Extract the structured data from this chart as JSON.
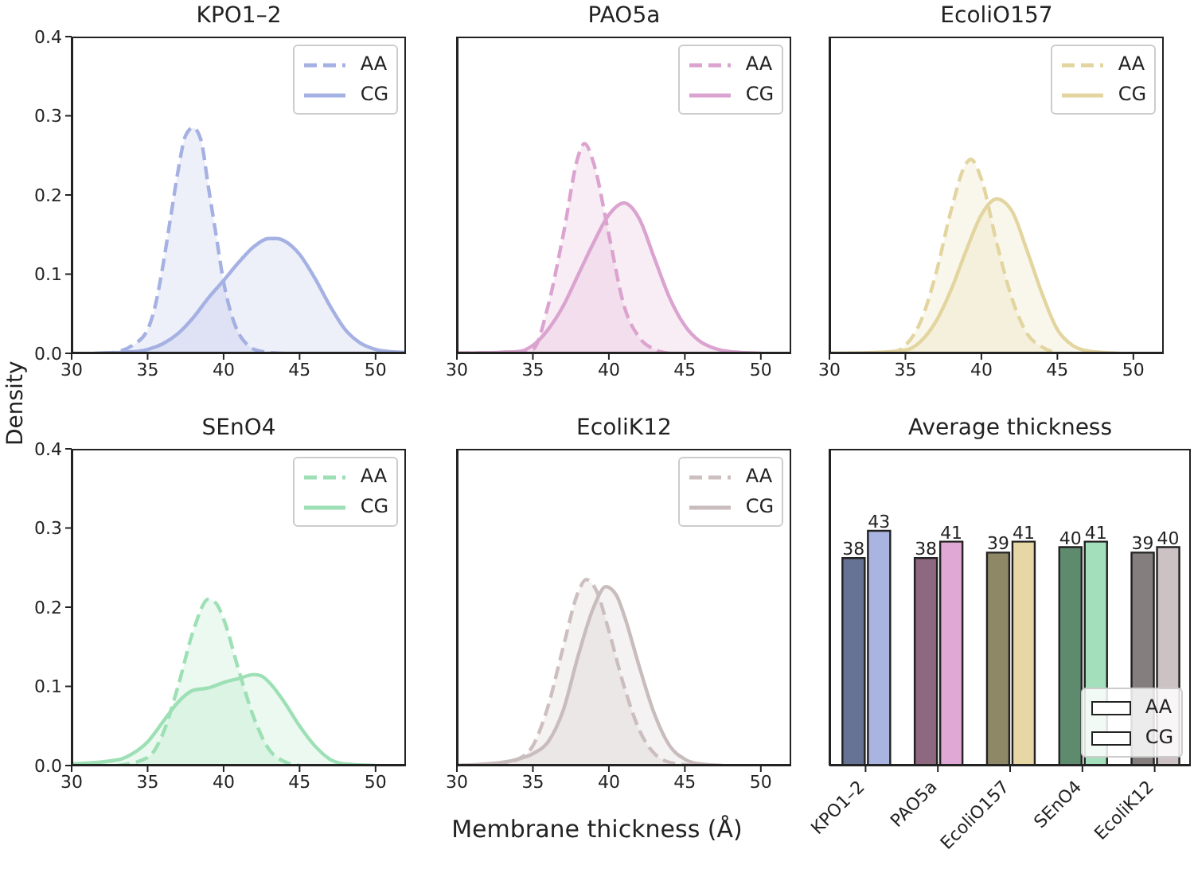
{
  "chart_data": [
    {
      "type": "area",
      "title": "KPO1–2",
      "ylabel": "Density",
      "xlim": [
        30,
        52
      ],
      "xticks": [
        30,
        35,
        40,
        45,
        50
      ],
      "ylim": [
        0,
        0.4
      ],
      "yticks": [
        {
          "value": 0,
          "label": "0.0"
        },
        0.1,
        0.2,
        0.3,
        0.4
      ],
      "legend": "top right",
      "series": [
        {
          "name": "AA",
          "color": "#a5b1e3",
          "line_style": "dashed",
          "x": [
            32,
            33,
            34,
            35,
            35.5,
            36,
            36.5,
            37,
            37.5,
            38,
            38.5,
            39,
            39.5,
            40,
            40.5,
            41,
            41.5,
            42,
            43,
            44
          ],
          "values": [
            0,
            0.002,
            0.01,
            0.03,
            0.06,
            0.11,
            0.17,
            0.23,
            0.275,
            0.285,
            0.27,
            0.21,
            0.15,
            0.09,
            0.05,
            0.025,
            0.012,
            0.005,
            0.001,
            0
          ]
        },
        {
          "name": "CG",
          "color": "#a5b1e3",
          "line_style": "solid",
          "x": [
            31.5,
            34,
            35,
            36,
            37,
            38,
            39,
            40,
            41,
            42,
            43,
            43.5,
            44,
            45,
            46,
            47,
            48,
            49,
            50,
            51,
            52
          ],
          "values": [
            0,
            0.002,
            0.005,
            0.012,
            0.025,
            0.045,
            0.07,
            0.092,
            0.115,
            0.135,
            0.145,
            0.145,
            0.142,
            0.125,
            0.095,
            0.06,
            0.03,
            0.013,
            0.005,
            0.002,
            0.001
          ]
        }
      ]
    },
    {
      "type": "area",
      "title": "PAO5a",
      "xlim": [
        30,
        52
      ],
      "xticks": [
        30,
        35,
        40,
        45,
        50
      ],
      "ylim": [
        0,
        0.4
      ],
      "yticks": [
        0,
        0.1,
        0.2,
        0.3,
        0.4
      ],
      "tick_labels": "x",
      "legend": "top right",
      "series": [
        {
          "name": "AA",
          "color": "#dba3cf",
          "line_style": "dashed",
          "x": [
            30,
            34,
            35,
            36,
            37,
            38,
            38.4,
            39,
            40,
            41,
            42,
            43,
            44
          ],
          "values": [
            0,
            0.002,
            0.005,
            0.06,
            0.15,
            0.25,
            0.265,
            0.24,
            0.15,
            0.06,
            0.02,
            0.005,
            0
          ]
        },
        {
          "name": "CG",
          "color": "#dba3cf",
          "line_style": "solid",
          "x": [
            30,
            34,
            35,
            36,
            37,
            38,
            39,
            40,
            41,
            42,
            43,
            44,
            45,
            46,
            47,
            48,
            50
          ],
          "values": [
            0,
            0.002,
            0.01,
            0.03,
            0.06,
            0.1,
            0.14,
            0.175,
            0.19,
            0.17,
            0.12,
            0.07,
            0.035,
            0.015,
            0.006,
            0.002,
            0
          ]
        }
      ]
    },
    {
      "type": "area",
      "title": "EcoliO157",
      "xlim": [
        30,
        52
      ],
      "xticks": [
        30,
        35,
        40,
        45,
        50
      ],
      "ylim": [
        0,
        0.4
      ],
      "yticks": [
        0,
        0.1,
        0.2,
        0.3,
        0.4
      ],
      "tick_labels": "x",
      "legend": "top right",
      "series": [
        {
          "name": "AA",
          "color": "#e3d59f",
          "line_style": "dashed",
          "x": [
            34,
            35,
            36,
            37,
            38,
            39,
            39.3,
            40,
            41,
            42,
            43,
            44,
            45
          ],
          "values": [
            0,
            0.01,
            0.04,
            0.1,
            0.18,
            0.24,
            0.245,
            0.22,
            0.14,
            0.07,
            0.025,
            0.008,
            0
          ]
        },
        {
          "name": "CG",
          "color": "#e3d59f",
          "line_style": "solid",
          "x": [
            30,
            33,
            35,
            36,
            37,
            38,
            39,
            40,
            41,
            42,
            43,
            44,
            45,
            46,
            47,
            49
          ],
          "values": [
            0,
            0.001,
            0.004,
            0.015,
            0.04,
            0.08,
            0.13,
            0.175,
            0.195,
            0.18,
            0.13,
            0.075,
            0.03,
            0.01,
            0.003,
            0
          ]
        }
      ]
    },
    {
      "type": "area",
      "title": "SEnO4",
      "xlim": [
        30,
        52
      ],
      "xticks": [
        30,
        35,
        40,
        45,
        50
      ],
      "ylim": [
        0,
        0.4
      ],
      "yticks": [
        {
          "value": 0,
          "label": "0.0"
        },
        0.1,
        0.2,
        0.3,
        0.4
      ],
      "legend": "top right",
      "series": [
        {
          "name": "AA",
          "color": "#9de0b5",
          "line_style": "dashed",
          "x": [
            33,
            35,
            36,
            37,
            38,
            39,
            39.5,
            40,
            41,
            42,
            43,
            44,
            45
          ],
          "values": [
            0,
            0.01,
            0.04,
            0.1,
            0.17,
            0.21,
            0.205,
            0.185,
            0.12,
            0.06,
            0.02,
            0.005,
            0
          ]
        },
        {
          "name": "CG",
          "color": "#9de0b5",
          "line_style": "solid",
          "x": [
            30,
            33,
            34,
            35,
            36,
            37,
            38,
            39,
            40,
            41,
            42,
            42.5,
            43,
            44,
            45,
            46,
            47,
            48,
            50
          ],
          "values": [
            0.002,
            0.007,
            0.015,
            0.03,
            0.055,
            0.08,
            0.095,
            0.098,
            0.105,
            0.11,
            0.115,
            0.113,
            0.105,
            0.08,
            0.05,
            0.025,
            0.008,
            0.002,
            0
          ]
        }
      ]
    },
    {
      "type": "area",
      "title": "EcoliK12",
      "xlabel": "Membrane thickness (Å)",
      "xlim": [
        30,
        52
      ],
      "xticks": [
        30,
        35,
        40,
        45,
        50
      ],
      "ylim": [
        0,
        0.4
      ],
      "yticks": [
        0,
        0.1,
        0.2,
        0.3,
        0.4
      ],
      "tick_labels": "x",
      "legend": "top right",
      "series": [
        {
          "name": "AA",
          "color": "#cdbfc0",
          "line_style": "dashed",
          "x": [
            30,
            33,
            34,
            35,
            36,
            37,
            38,
            38.5,
            39.2,
            40,
            41,
            42,
            43,
            44,
            45,
            46
          ],
          "values": [
            0,
            0.003,
            0.008,
            0.025,
            0.075,
            0.15,
            0.22,
            0.235,
            0.22,
            0.17,
            0.1,
            0.045,
            0.015,
            0.004,
            0.001,
            0
          ]
        },
        {
          "name": "CG",
          "color": "#c9bcbd",
          "line_style": "solid",
          "x": [
            30,
            33,
            34,
            35,
            36,
            37,
            38,
            39,
            39.8,
            40.5,
            41,
            42,
            43,
            44,
            45,
            46,
            47.5
          ],
          "values": [
            0,
            0.004,
            0.008,
            0.015,
            0.03,
            0.07,
            0.14,
            0.2,
            0.226,
            0.215,
            0.19,
            0.125,
            0.065,
            0.025,
            0.008,
            0.002,
            0
          ]
        }
      ]
    },
    {
      "type": "bar",
      "title": "Average thickness",
      "categories": [
        "KPO1–2",
        "PAO5a",
        "EcoliO157",
        "SEnO4",
        "EcoliK12"
      ],
      "ylim": [
        0,
        58
      ],
      "tick_labels": "x",
      "data_labels": true,
      "legend": "bottom right",
      "series": [
        {
          "name": "AA",
          "colors": [
            "#667394",
            "#8e6780",
            "#8e8866",
            "#5e8a6e",
            "#857e7e"
          ],
          "values": [
            38,
            38,
            39,
            40,
            39
          ]
        },
        {
          "name": "CG",
          "colors": [
            "#aab4e0",
            "#e0a8d4",
            "#e6d7a4",
            "#a3dfbb",
            "#cdc2c3"
          ],
          "values": [
            43,
            41,
            41,
            41,
            40
          ]
        }
      ]
    }
  ]
}
